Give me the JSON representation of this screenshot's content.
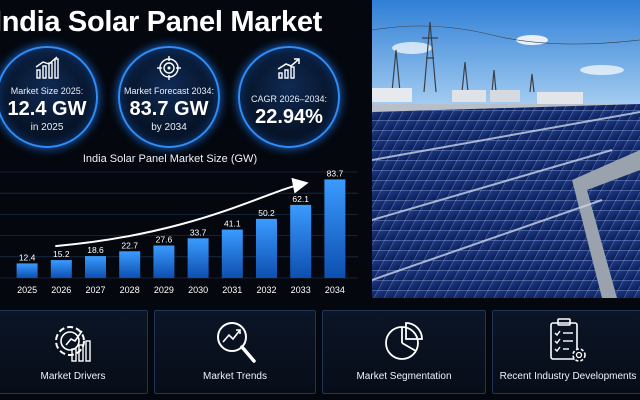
{
  "header": {
    "title": "India Solar Panel Market"
  },
  "stats": [
    {
      "label": "Market Size 2025:",
      "value": "12.4 GW",
      "sub": "in 2025",
      "icon": "bar-chart-icon"
    },
    {
      "label": "Market Forecast 2034:",
      "value": "83.7 GW",
      "sub": "by 2034",
      "icon": "target-icon"
    },
    {
      "label": "CAGR 2026–2034:",
      "value": "22.94%",
      "sub": "",
      "icon": "trend-up-icon"
    }
  ],
  "chart_data": {
    "type": "bar",
    "title": "India Solar Panel Market Size (GW)",
    "categories": [
      "2025",
      "2026",
      "2027",
      "2028",
      "2029",
      "2030",
      "2031",
      "2032",
      "2033",
      "2034"
    ],
    "values": [
      12.4,
      15.2,
      18.6,
      22.7,
      27.6,
      33.7,
      41.1,
      50.2,
      62.1,
      83.7
    ],
    "value_labels": [
      "12.4",
      "15.2",
      "18.6",
      "22.7",
      "27.6",
      "33.7",
      "41.1",
      "50.2",
      "62.1",
      "83.7"
    ],
    "ylim": [
      0,
      90
    ],
    "grid": true,
    "trend_arrow": true,
    "bar_color": "#1e7be6"
  },
  "cards": [
    {
      "label": "Market Drivers",
      "icon": "gear-growth-icon"
    },
    {
      "label": "Market Trends",
      "icon": "magnifier-trend-icon"
    },
    {
      "label": "Market Segmentation",
      "icon": "pie-chart-icon"
    },
    {
      "label": "Recent Industry Developments",
      "icon": "clipboard-gear-icon"
    }
  ],
  "colors": {
    "accent": "#2f8df5",
    "background": "#04070d"
  }
}
